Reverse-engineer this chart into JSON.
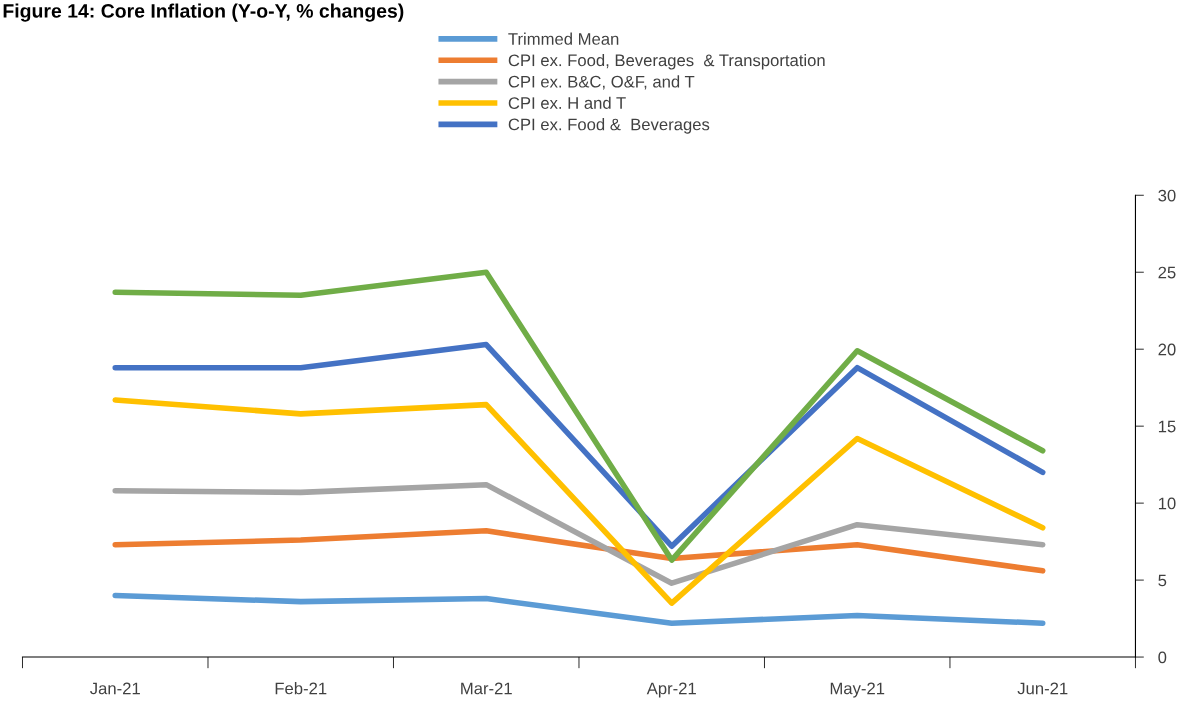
{
  "chart_data": {
    "type": "line",
    "title": "Figure 14: Core Inflation (Y-o-Y, % changes)",
    "categories": [
      "Jan-21",
      "Feb-21",
      "Mar-21",
      "Apr-21",
      "May-21",
      "Jun-21"
    ],
    "series": [
      {
        "name": "Trimmed Mean",
        "color": "#5b9bd5",
        "values": [
          4.0,
          3.6,
          3.8,
          2.2,
          2.7,
          2.2
        ]
      },
      {
        "name": "CPI ex. Food, Beverages  & Transportation",
        "color": "#ed7d31",
        "values": [
          7.3,
          7.6,
          8.2,
          6.4,
          7.3,
          5.6
        ]
      },
      {
        "name": "CPI ex. B&C, O&F, and T",
        "color": "#a5a5a5",
        "values": [
          10.8,
          10.7,
          11.2,
          4.8,
          8.6,
          7.3
        ]
      },
      {
        "name": "CPI ex. H and T",
        "color": "#ffc000",
        "values": [
          16.7,
          15.8,
          16.4,
          3.5,
          14.2,
          8.4
        ]
      },
      {
        "name": "CPI ex. Food &  Beverages",
        "color": "#4472c4",
        "values": [
          18.8,
          18.8,
          20.3,
          7.2,
          18.8,
          12.0
        ]
      },
      {
        "color": "#70ad47",
        "values": [
          23.7,
          23.5,
          25.0,
          6.3,
          19.9,
          13.4
        ]
      }
    ],
    "ylim": [
      0,
      30
    ],
    "yticks": [
      0,
      5,
      10,
      15,
      20,
      25,
      30
    ],
    "grid": false,
    "legend": "top",
    "marker": "none",
    "line_style": "solid"
  }
}
